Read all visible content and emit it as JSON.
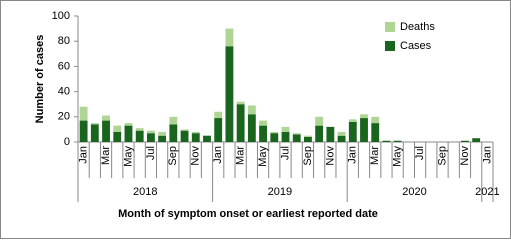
{
  "chart_data": {
    "type": "stacked-bar",
    "y_axis_label": "Number of cases",
    "x_axis_label": "Month of symptom onset or earliest reported date",
    "categories": [
      "Jan",
      null,
      "Mar",
      null,
      "May",
      null,
      "Jul",
      null,
      "Sep",
      null,
      "Nov",
      null,
      "Jan",
      null,
      "Mar",
      null,
      "May",
      null,
      "Jul",
      null,
      "Sep",
      null,
      "Nov",
      null,
      "Jan",
      null,
      "Mar",
      null,
      "May",
      null,
      "Jul",
      null,
      "Sep",
      null,
      "Nov",
      null,
      "Jan"
    ],
    "years": [
      "2018",
      null,
      null,
      null,
      null,
      null,
      null,
      null,
      null,
      null,
      null,
      null,
      "2019",
      null,
      null,
      null,
      null,
      null,
      null,
      null,
      null,
      null,
      null,
      null,
      "2020",
      null,
      null,
      null,
      null,
      null,
      null,
      null,
      null,
      null,
      null,
      null,
      "2021"
    ],
    "series": [
      {
        "name": "Cases",
        "color": "#19651d",
        "values": [
          17,
          14,
          17,
          8,
          13,
          9,
          7,
          5,
          14,
          9,
          7,
          5,
          19,
          76,
          30,
          22,
          13,
          7,
          8,
          6,
          4,
          13,
          12,
          5,
          16,
          19,
          15,
          1,
          1,
          0,
          0,
          0,
          0,
          0,
          1,
          3,
          0
        ]
      },
      {
        "name": "Deaths",
        "color": "#afd595",
        "values": [
          11,
          1,
          4,
          5,
          2,
          2,
          2,
          3,
          6,
          1,
          1,
          0,
          5,
          14,
          2,
          7,
          4,
          1,
          4,
          1,
          1,
          7,
          0,
          3,
          2,
          3,
          5,
          0,
          0,
          0,
          0,
          0,
          0,
          0,
          0,
          0,
          0
        ]
      }
    ],
    "ylim": [
      0,
      100
    ],
    "yticks": [
      0,
      20,
      40,
      60,
      80,
      100
    ],
    "legend": "top-right"
  }
}
